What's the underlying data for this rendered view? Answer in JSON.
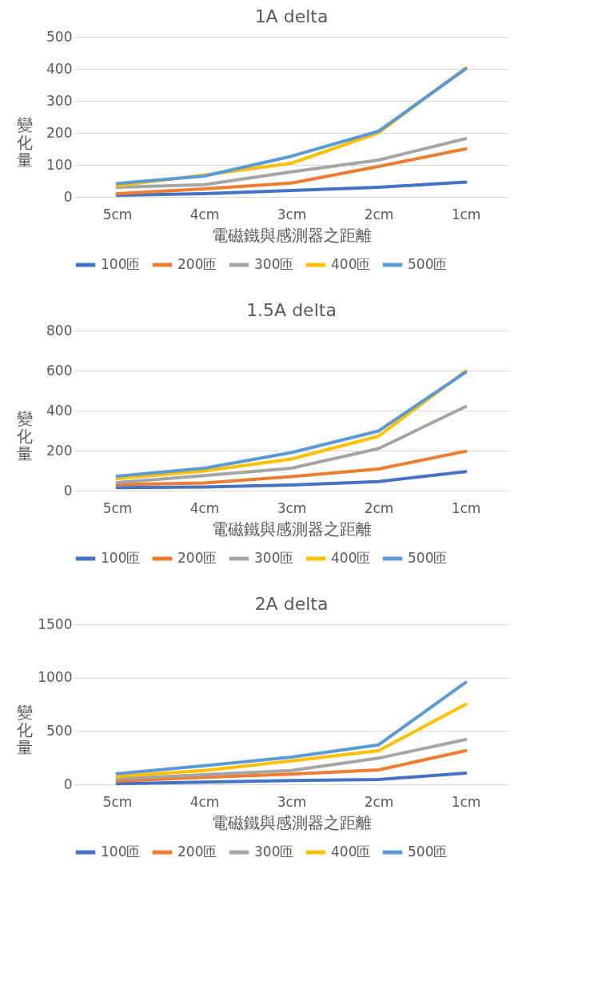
{
  "chart_data": [
    {
      "type": "line",
      "title": "1A delta",
      "xlabel": "電磁鐵與感測器之距離",
      "ylabel": "變化量",
      "categories": [
        "5cm",
        "4cm",
        "3cm",
        "2cm",
        "1cm"
      ],
      "ylim": [
        0,
        500
      ],
      "yticks": [
        0,
        100,
        200,
        300,
        400,
        500
      ],
      "grid": "y",
      "legend": "bottom",
      "series": [
        {
          "name": "100匝",
          "color": "#4472c4",
          "values": [
            5,
            10,
            20,
            30,
            46
          ]
        },
        {
          "name": "200匝",
          "color": "#ed7d31",
          "values": [
            10,
            25,
            43,
            95,
            150
          ]
        },
        {
          "name": "300匝",
          "color": "#a5a5a5",
          "values": [
            30,
            38,
            78,
            115,
            182
          ]
        },
        {
          "name": "400匝",
          "color": "#ffc000",
          "values": [
            35,
            68,
            105,
            200,
            403
          ]
        },
        {
          "name": "500匝",
          "color": "#5b9bd5",
          "values": [
            42,
            65,
            127,
            205,
            400
          ]
        }
      ]
    },
    {
      "type": "line",
      "title": "1.5A delta",
      "xlabel": "電磁鐵與感測器之距離",
      "ylabel": "變化量",
      "categories": [
        "5cm",
        "4cm",
        "3cm",
        "2cm",
        "1cm"
      ],
      "ylim": [
        0,
        800
      ],
      "yticks": [
        0,
        200,
        400,
        600,
        800
      ],
      "grid": "y",
      "legend": "bottom",
      "series": [
        {
          "name": "100匝",
          "color": "#4472c4",
          "values": [
            15,
            18,
            28,
            45,
            95
          ]
        },
        {
          "name": "200匝",
          "color": "#ed7d31",
          "values": [
            30,
            38,
            70,
            108,
            197
          ]
        },
        {
          "name": "300匝",
          "color": "#a5a5a5",
          "values": [
            40,
            75,
            112,
            210,
            420
          ]
        },
        {
          "name": "400匝",
          "color": "#ffc000",
          "values": [
            60,
            98,
            158,
            272,
            598
          ]
        },
        {
          "name": "500匝",
          "color": "#5b9bd5",
          "values": [
            72,
            112,
            190,
            298,
            592
          ]
        }
      ]
    },
    {
      "type": "line",
      "title": "2A delta",
      "xlabel": "電磁鐵與感測器之距離",
      "ylabel": "變化量",
      "categories": [
        "5cm",
        "4cm",
        "3cm",
        "2cm",
        "1cm"
      ],
      "ylim": [
        0,
        1500
      ],
      "yticks": [
        0,
        500,
        1000,
        1500
      ],
      "grid": "y",
      "legend": "bottom",
      "series": [
        {
          "name": "100匝",
          "color": "#4472c4",
          "values": [
            5,
            20,
            35,
            45,
            105
          ]
        },
        {
          "name": "200匝",
          "color": "#ed7d31",
          "values": [
            30,
            65,
            95,
            135,
            315
          ]
        },
        {
          "name": "300匝",
          "color": "#a5a5a5",
          "values": [
            50,
            90,
            130,
            245,
            420
          ]
        },
        {
          "name": "400匝",
          "color": "#ffc000",
          "values": [
            75,
            130,
            220,
            315,
            750
          ]
        },
        {
          "name": "500匝",
          "color": "#5b9bd5",
          "values": [
            100,
            175,
            255,
            370,
            955
          ]
        }
      ]
    }
  ]
}
